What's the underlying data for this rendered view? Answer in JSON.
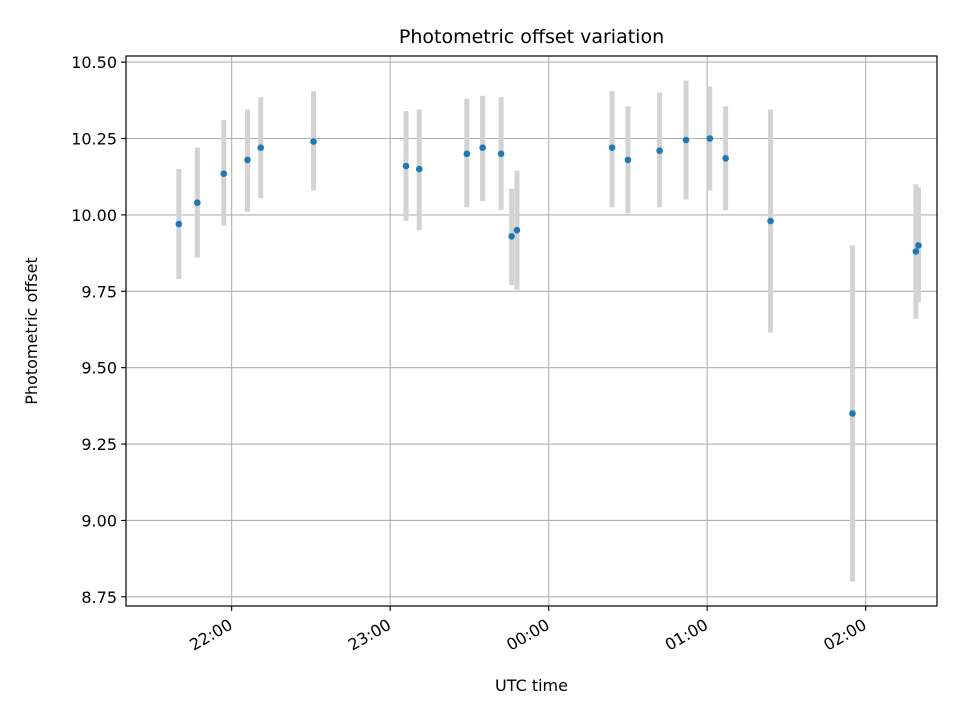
{
  "chart_data": {
    "type": "scatter",
    "title": "Photometric offset variation",
    "xlabel": "UTC time",
    "ylabel": "Photometric offset",
    "x_ticks": [
      "22:00",
      "23:00",
      "00:00",
      "01:00",
      "02:00"
    ],
    "y_ticks": [
      "8.75",
      "9.00",
      "9.25",
      "9.50",
      "9.75",
      "10.00",
      "10.25",
      "10.50"
    ],
    "xlim": [
      "21:20",
      "02:27"
    ],
    "ylim": [
      8.72,
      10.52
    ],
    "grid": true,
    "point_color": "#1f77b4",
    "errorbar_color": "#d3d3d3",
    "series": [
      {
        "points": [
          {
            "t": "21:40",
            "y": 9.97,
            "lo": 9.79,
            "hi": 10.15
          },
          {
            "t": "21:47",
            "y": 10.04,
            "lo": 9.86,
            "hi": 10.22
          },
          {
            "t": "21:57",
            "y": 10.135,
            "lo": 9.965,
            "hi": 10.31
          },
          {
            "t": "22:06",
            "y": 10.18,
            "lo": 10.01,
            "hi": 10.345
          },
          {
            "t": "22:11",
            "y": 10.22,
            "lo": 10.055,
            "hi": 10.385
          },
          {
            "t": "22:31",
            "y": 10.24,
            "lo": 10.08,
            "hi": 10.405
          },
          {
            "t": "23:06",
            "y": 10.16,
            "lo": 9.98,
            "hi": 10.34
          },
          {
            "t": "23:11",
            "y": 10.15,
            "lo": 9.95,
            "hi": 10.345
          },
          {
            "t": "23:29",
            "y": 10.2,
            "lo": 10.025,
            "hi": 10.38
          },
          {
            "t": "23:35",
            "y": 10.22,
            "lo": 10.045,
            "hi": 10.39
          },
          {
            "t": "23:42",
            "y": 10.2,
            "lo": 10.015,
            "hi": 10.385
          },
          {
            "t": "23:46",
            "y": 9.93,
            "lo": 9.77,
            "hi": 10.085
          },
          {
            "t": "23:48",
            "y": 9.95,
            "lo": 9.755,
            "hi": 10.145
          },
          {
            "t": "00:24",
            "y": 10.22,
            "lo": 10.025,
            "hi": 10.405
          },
          {
            "t": "00:30",
            "y": 10.18,
            "lo": 10.005,
            "hi": 10.355
          },
          {
            "t": "00:42",
            "y": 10.21,
            "lo": 10.025,
            "hi": 10.4
          },
          {
            "t": "00:52",
            "y": 10.245,
            "lo": 10.05,
            "hi": 10.44
          },
          {
            "t": "01:01",
            "y": 10.25,
            "lo": 10.08,
            "hi": 10.42
          },
          {
            "t": "01:07",
            "y": 10.185,
            "lo": 10.015,
            "hi": 10.355
          },
          {
            "t": "01:24",
            "y": 9.98,
            "lo": 9.615,
            "hi": 10.345
          },
          {
            "t": "01:55",
            "y": 9.35,
            "lo": 8.8,
            "hi": 9.9
          },
          {
            "t": "02:19",
            "y": 9.88,
            "lo": 9.66,
            "hi": 10.1
          },
          {
            "t": "02:20",
            "y": 9.9,
            "lo": 9.715,
            "hi": 10.09
          }
        ]
      }
    ]
  }
}
